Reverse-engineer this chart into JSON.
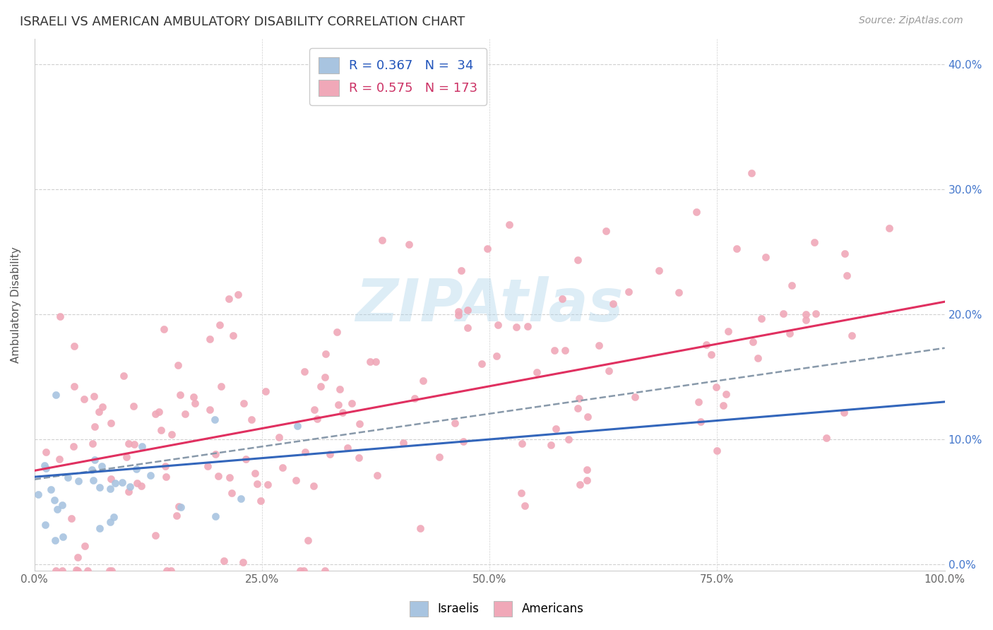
{
  "title": "ISRAELI VS AMERICAN AMBULATORY DISABILITY CORRELATION CHART",
  "source": "Source: ZipAtlas.com",
  "ylabel": "Ambulatory Disability",
  "xlim": [
    0,
    1.0
  ],
  "ylim": [
    -0.005,
    0.42
  ],
  "xticks": [
    0.0,
    0.25,
    0.5,
    0.75,
    1.0
  ],
  "xtick_labels": [
    "0.0%",
    "25.0%",
    "50.0%",
    "75.0%",
    "100.0%"
  ],
  "yticks": [
    0.0,
    0.1,
    0.2,
    0.3,
    0.4
  ],
  "ytick_labels": [
    "",
    "",
    "",
    "",
    ""
  ],
  "right_ytick_labels": [
    "0.0%",
    "10.0%",
    "20.0%",
    "30.0%",
    "40.0%"
  ],
  "israeli_color": "#a8c4e0",
  "american_color": "#f0a8b8",
  "israeli_line_color": "#3366bb",
  "american_line_color": "#e03060",
  "dashed_line_color": "#8899aa",
  "R_israeli": 0.367,
  "N_israeli": 34,
  "R_american": 0.575,
  "N_american": 173,
  "watermark": "ZIPAtlas",
  "background_color": "#ffffff",
  "grid_color": "#d0d0d0",
  "title_fontsize": 13,
  "tick_fontsize": 11,
  "legend_fontsize": 13
}
